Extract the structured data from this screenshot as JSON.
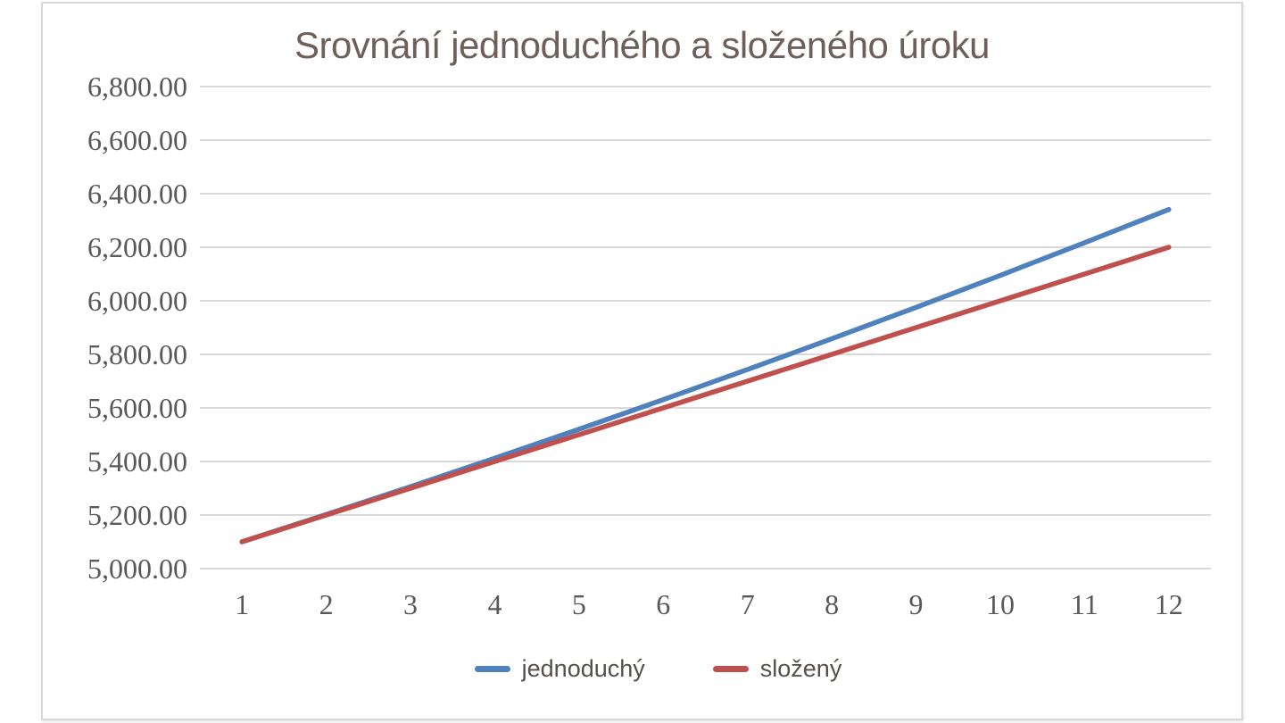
{
  "page": {
    "background": "#ffffff",
    "card_border_color": "#d8d8d8"
  },
  "chart_data": {
    "type": "line",
    "title": "Srovnání jednoduchého a složeného úroku",
    "title_color": "#6e6058",
    "categories": [
      "1",
      "2",
      "3",
      "4",
      "5",
      "6",
      "7",
      "8",
      "9",
      "10",
      "11",
      "12"
    ],
    "series": [
      {
        "name": "jednoduchý",
        "color": "#4f81bd",
        "values": [
          5100.0,
          5202.0,
          5306.04,
          5412.16,
          5520.4,
          5630.81,
          5743.43,
          5858.3,
          5975.46,
          6094.97,
          6216.87,
          6341.21
        ]
      },
      {
        "name": "složený",
        "color": "#c0504d",
        "values": [
          5100.0,
          5200.0,
          5300.0,
          5400.0,
          5500.0,
          5600.0,
          5700.0,
          5800.0,
          5900.0,
          6000.0,
          6100.0,
          6200.0
        ]
      }
    ],
    "xlabel": "",
    "ylabel": "",
    "ylim": [
      5000,
      6800
    ],
    "ytick_step": 200,
    "ytick_labels": [
      "5,000.00",
      "5,200.00",
      "5,400.00",
      "5,600.00",
      "5,800.00",
      "6,000.00",
      "6,200.00",
      "6,400.00",
      "6,600.00",
      "6,800.00"
    ],
    "grid": true,
    "gridline_color": "#d9d9d9",
    "tick_label_color": "#595959",
    "legend_position": "bottom",
    "legend_text_color": "#55504b"
  }
}
